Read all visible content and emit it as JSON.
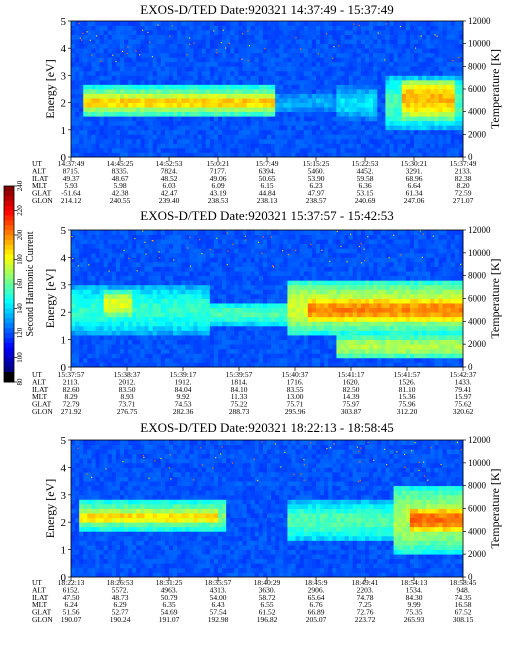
{
  "colorbar": {
    "label": "Second Harmonic Current",
    "ticks": [
      "80",
      "100",
      "120",
      "140",
      "160",
      "180",
      "200",
      "220",
      "240"
    ]
  },
  "row_labels": [
    "UT",
    "ALT",
    "ILAT",
    "MLT",
    "GLAT",
    "GLON"
  ],
  "chart_data": [
    {
      "type": "heatmap",
      "title": "EXOS-D/TED   Date:920321   14:37:49 - 15:37:49",
      "ylabel": "Energy [eV]",
      "y2label": "Temperature [K]",
      "ylim": [
        0,
        5
      ],
      "y2lim": [
        0,
        12000
      ],
      "yticks": [
        "0",
        "1",
        "2",
        "3",
        "4",
        "5"
      ],
      "y2ticks": [
        "0",
        "2000",
        "4000",
        "6000",
        "8000",
        "10000",
        "12000"
      ],
      "columns": [
        [
          "14:37:49",
          "8715.",
          "49.37",
          "5.93",
          "-51.64",
          "214.12"
        ],
        [
          "14:45:25",
          "8335.",
          "48.67",
          "5.98",
          "42.38",
          "240.55"
        ],
        [
          "14:52:53",
          "7824.",
          "48.52",
          "6.03",
          "42.47",
          "239.40"
        ],
        [
          "15:0:21",
          "7177.",
          "49.06",
          "6.09",
          "43.19",
          "238.53"
        ],
        [
          "15:7:49",
          "6394.",
          "50.65",
          "6.15",
          "44.84",
          "238.13"
        ],
        [
          "15:15:25",
          "5460.",
          "53.90",
          "6.23",
          "47.97",
          "238.57"
        ],
        [
          "15:22:53",
          "4452.",
          "59.58",
          "6.36",
          "53.15",
          "240.69"
        ],
        [
          "15:30:21",
          "3291.",
          "68.96",
          "6.64",
          "61.34",
          "247.06"
        ],
        [
          "15:37:49",
          "2133.",
          "82.38",
          "8.20",
          "72.59",
          "271.07"
        ]
      ],
      "bands": [
        {
          "from": 0.03,
          "to": 0.52,
          "ylo": 1.45,
          "yhi": 2.65,
          "level": 0.55
        },
        {
          "from": 0.03,
          "to": 0.52,
          "ylo": 1.7,
          "yhi": 2.35,
          "level": 0.68
        },
        {
          "from": 0.46,
          "to": 0.68,
          "ylo": 1.6,
          "yhi": 2.4,
          "level": 0.3
        },
        {
          "from": 0.68,
          "to": 0.78,
          "ylo": 1.4,
          "yhi": 2.6,
          "level": 0.35
        },
        {
          "from": 0.8,
          "to": 1.0,
          "ylo": 1.0,
          "yhi": 3.0,
          "level": 0.45
        },
        {
          "from": 0.84,
          "to": 0.98,
          "ylo": 1.4,
          "yhi": 2.9,
          "level": 0.7
        },
        {
          "from": 0.0,
          "to": 1.0,
          "ylo": 3.6,
          "yhi": 5.0,
          "level": 0.12
        }
      ]
    },
    {
      "type": "heatmap",
      "title": "EXOS-D/TED   Date:920321   15:37:57 - 15:42:53",
      "ylabel": "Energy [eV]",
      "y2label": "Temperature [K]",
      "ylim": [
        0,
        5
      ],
      "y2lim": [
        0,
        12000
      ],
      "yticks": [
        "0",
        "1",
        "2",
        "3",
        "4",
        "5"
      ],
      "y2ticks": [
        "0",
        "2000",
        "4000",
        "6000",
        "8000",
        "10000",
        "12000"
      ],
      "columns": [
        [
          "15:37:57",
          "2113.",
          "82.60",
          "8.29",
          "72.79",
          "271.92"
        ],
        [
          "15:38:37",
          "2012.",
          "83.50",
          "8.93",
          "73.71",
          "276.75"
        ],
        [
          "15:39:17",
          "1912.",
          "84.04",
          "9.92",
          "74.53",
          "282.36"
        ],
        [
          "15:39:57",
          "1814.",
          "84.10",
          "11.33",
          "75.22",
          "288.73"
        ],
        [
          "15:40:37",
          "1716.",
          "83.55",
          "13.00",
          "75.71",
          "295.96"
        ],
        [
          "15:41:17",
          "1620.",
          "82.50",
          "14.39",
          "75.97",
          "303.87"
        ],
        [
          "15:41:57",
          "1526.",
          "81.10",
          "15.36",
          "75.96",
          "312.20"
        ],
        [
          "15:42:37",
          "1433.",
          "79.41",
          "15.97",
          "75.62",
          "320.62"
        ]
      ],
      "bands": [
        {
          "from": 0.0,
          "to": 0.35,
          "ylo": 1.2,
          "yhi": 3.0,
          "level": 0.42
        },
        {
          "from": 0.08,
          "to": 0.16,
          "ylo": 1.8,
          "yhi": 2.8,
          "level": 0.6
        },
        {
          "from": 0.35,
          "to": 0.55,
          "ylo": 1.5,
          "yhi": 2.4,
          "level": 0.45
        },
        {
          "from": 0.55,
          "to": 1.0,
          "ylo": 1.2,
          "yhi": 3.2,
          "level": 0.58
        },
        {
          "from": 0.6,
          "to": 1.0,
          "ylo": 1.6,
          "yhi": 2.6,
          "level": 0.75
        },
        {
          "from": 0.68,
          "to": 1.0,
          "ylo": 0.3,
          "yhi": 1.2,
          "level": 0.55
        },
        {
          "from": 0.0,
          "to": 1.0,
          "ylo": 3.6,
          "yhi": 5.0,
          "level": 0.14
        }
      ]
    },
    {
      "type": "heatmap",
      "title": "EXOS-D/TED   Date:920321   18:22:13 - 18:58:45",
      "ylabel": "Energy [eV]",
      "y2label": "Temperature [K]",
      "ylim": [
        0,
        5
      ],
      "y2lim": [
        0,
        12000
      ],
      "yticks": [
        "0",
        "1",
        "2",
        "3",
        "4",
        "5"
      ],
      "y2ticks": [
        "0",
        "2000",
        "4000",
        "6000",
        "8000",
        "10000",
        "12000"
      ],
      "columns": [
        [
          "18:22:13",
          "6152.",
          "47.50",
          "6.24",
          "51.56",
          "190.07"
        ],
        [
          "18:26:53",
          "5572.",
          "48.73",
          "6.29",
          "52.77",
          "190.24"
        ],
        [
          "18:31:25",
          "4963.",
          "50.79",
          "6.35",
          "54.69",
          "191.07"
        ],
        [
          "18:35:57",
          "4313.",
          "54.00",
          "6.43",
          "57.54",
          "192.98"
        ],
        [
          "18:40:29",
          "3630.",
          "58.72",
          "6.55",
          "61.52",
          "196.82"
        ],
        [
          "18:45:9",
          "2906.",
          "65.64",
          "6.76",
          "66.89",
          "205.07"
        ],
        [
          "18:49:41",
          "2203.",
          "74.78",
          "7.25",
          "72.76",
          "223.72"
        ],
        [
          "18:54:13",
          "1534.",
          "84.30",
          "9.99",
          "75.35",
          "265.93"
        ],
        [
          "18:58:45",
          "948.",
          "74.35",
          "16.58",
          "67.52",
          "308.15"
        ]
      ],
      "bands": [
        {
          "from": 0.02,
          "to": 0.4,
          "ylo": 1.6,
          "yhi": 2.9,
          "level": 0.5
        },
        {
          "from": 0.02,
          "to": 0.38,
          "ylo": 1.9,
          "yhi": 2.5,
          "level": 0.66
        },
        {
          "from": 0.55,
          "to": 0.82,
          "ylo": 1.3,
          "yhi": 2.8,
          "level": 0.45
        },
        {
          "from": 0.82,
          "to": 1.0,
          "ylo": 0.8,
          "yhi": 3.4,
          "level": 0.55
        },
        {
          "from": 0.86,
          "to": 1.0,
          "ylo": 1.6,
          "yhi": 2.6,
          "level": 0.78
        },
        {
          "from": 0.0,
          "to": 1.0,
          "ylo": 3.6,
          "yhi": 5.0,
          "level": 0.12
        }
      ]
    }
  ]
}
